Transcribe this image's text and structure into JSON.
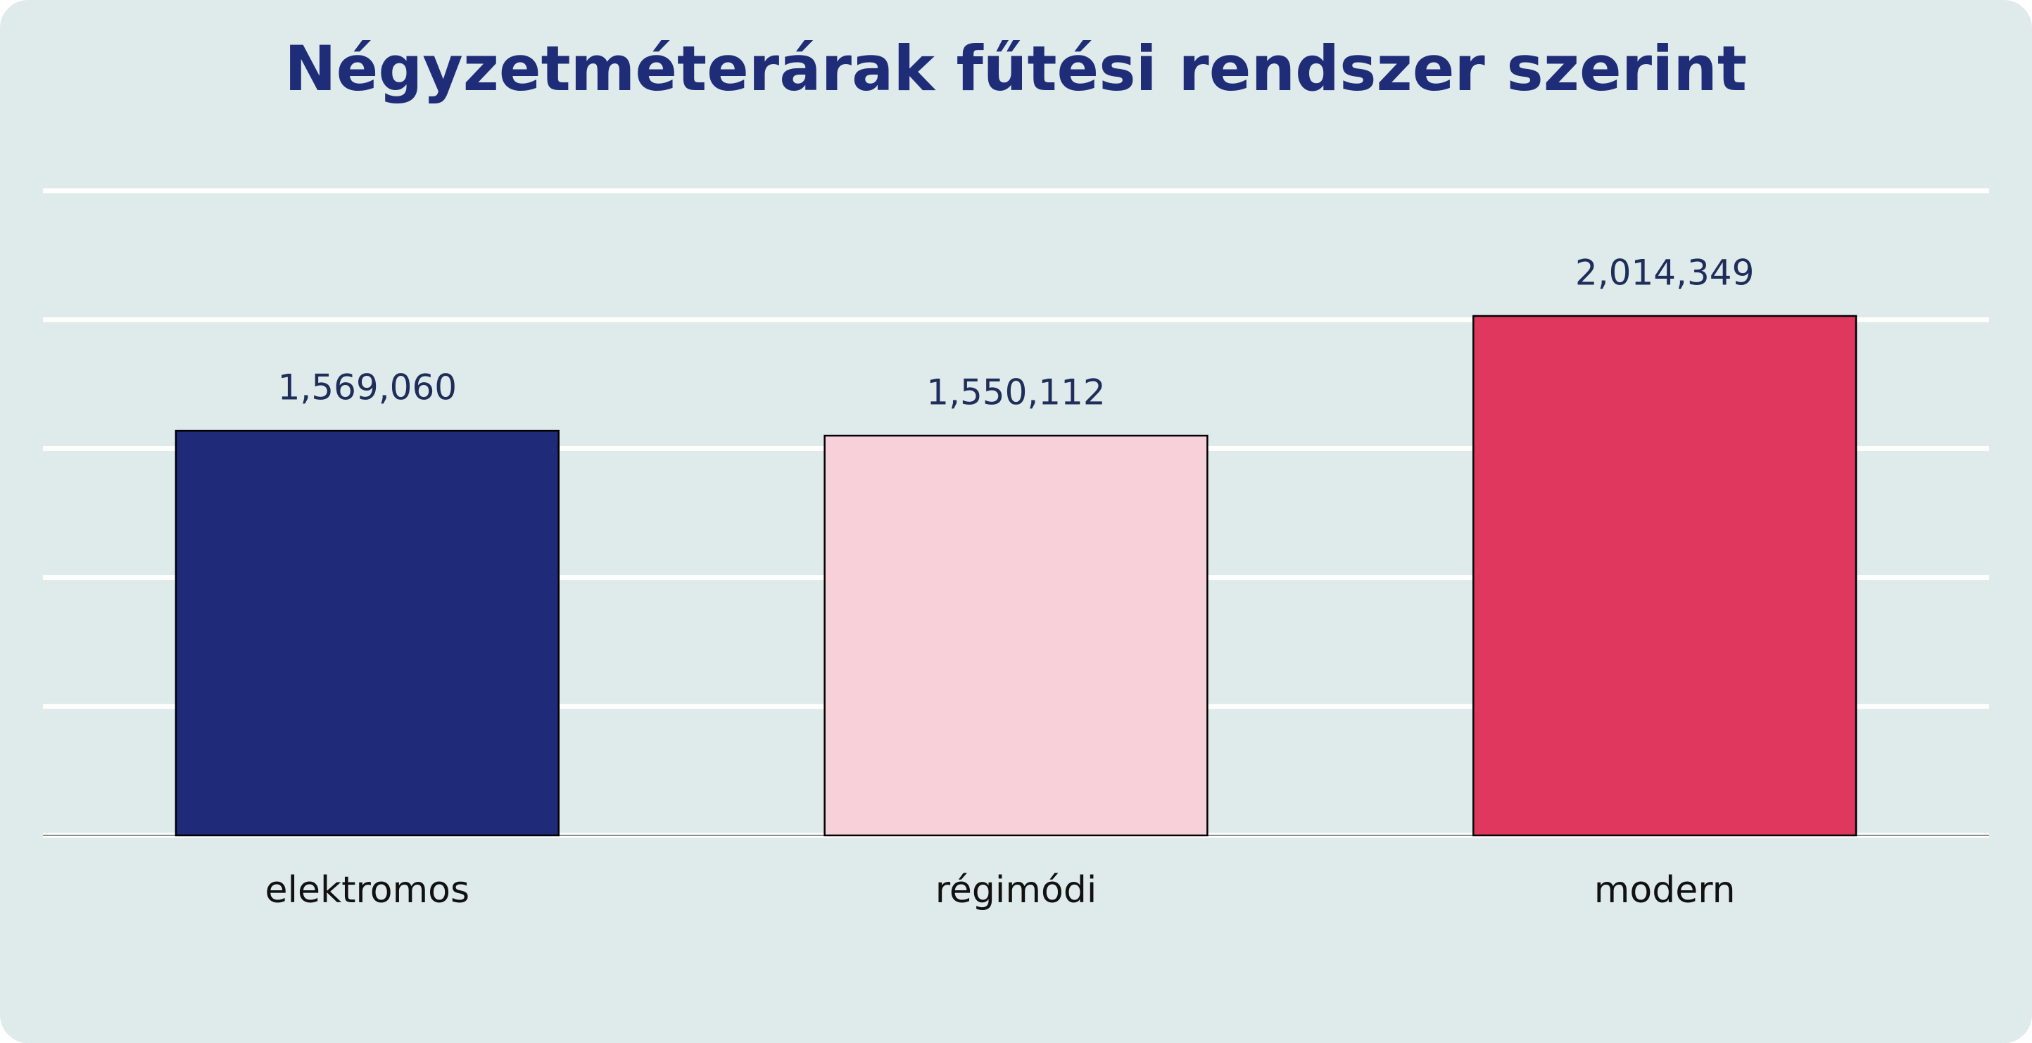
{
  "chart_data": {
    "type": "bar",
    "title": "Négyzetméterárak fűtési rendszer szerint",
    "categories": [
      "elektromos",
      "régimódi",
      "modern"
    ],
    "values": [
      1569060,
      1550112,
      2014349
    ],
    "value_labels": [
      "1,569,060",
      "1,550,112",
      "2,014,349"
    ],
    "colors": [
      "#1f2a78",
      "#f8d0da",
      "#e0375e"
    ],
    "ylim": [
      0,
      2500000
    ],
    "yticks": [
      0,
      500000,
      1000000,
      1500000,
      2000000,
      2500000
    ],
    "grid": true
  }
}
